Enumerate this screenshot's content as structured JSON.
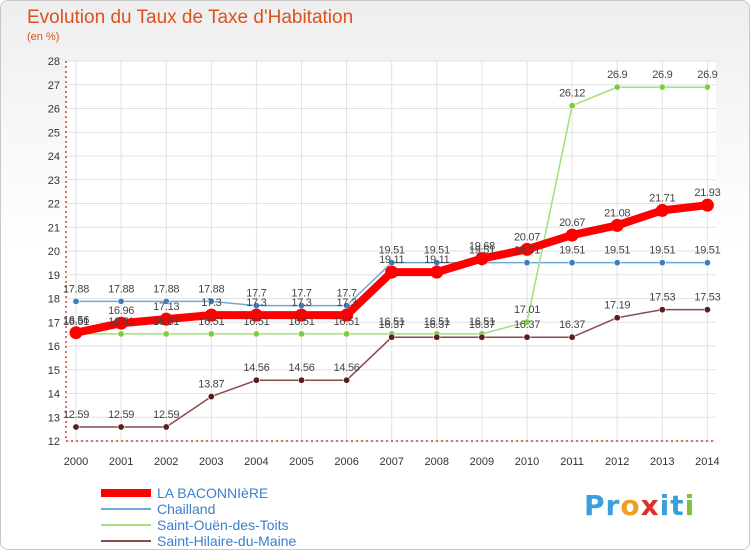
{
  "chart_data": {
    "type": "line",
    "title": "Evolution du Taux de Taxe d'Habitation",
    "unit": "(en %)",
    "x": [
      "2000",
      "2001",
      "2002",
      "2003",
      "2004",
      "2005",
      "2006",
      "2007",
      "2008",
      "2009",
      "2010",
      "2011",
      "2012",
      "2013",
      "2014"
    ],
    "ylim": [
      12,
      28
    ],
    "yticks": [
      12,
      13,
      14,
      15,
      16,
      17,
      18,
      19,
      20,
      21,
      22,
      23,
      24,
      25,
      26,
      27,
      28
    ],
    "grid": true,
    "legend_position": "bottom-left",
    "series": [
      {
        "name": "Chailland",
        "color": "#6fa8d6",
        "marker": "#3a7fc4",
        "values": [
          17.88,
          17.88,
          17.88,
          17.88,
          17.7,
          17.7,
          17.7,
          19.51,
          19.51,
          19.51,
          19.51,
          19.51,
          19.51,
          19.51,
          19.51
        ],
        "labels": [
          "17.88",
          "17.88",
          "17.88",
          "17.88",
          "17.7",
          "17.7",
          "17.7",
          "19.51",
          "19.51",
          "19.51",
          "19.51",
          "19.51",
          "19.51",
          "19.51",
          "19.51"
        ]
      },
      {
        "name": "Saint-Ouën-des-Toits",
        "color": "#9fe07a",
        "marker": "#7ccf3c",
        "values": [
          16.51,
          16.51,
          16.51,
          16.51,
          16.51,
          16.51,
          16.51,
          16.51,
          16.51,
          16.51,
          17.01,
          26.12,
          26.9,
          26.9,
          26.9
        ],
        "labels": [
          "16.51",
          "16.51",
          "16.51",
          "16.51",
          "16.51",
          "16.51",
          "16.51",
          "16.51",
          "16.51",
          "16.51",
          "17.01",
          "26.12",
          "26.9",
          "26.9",
          "26.9"
        ]
      },
      {
        "name": "Saint-Hilaire-du-Maine",
        "color": "#8a4a4a",
        "marker": "#5a1e1e",
        "values": [
          12.59,
          12.59,
          12.59,
          13.87,
          14.56,
          14.56,
          14.56,
          16.37,
          16.37,
          16.37,
          16.37,
          16.37,
          17.19,
          17.53,
          17.53
        ],
        "labels": [
          "12.59",
          "12.59",
          "12.59",
          "13.87",
          "14.56",
          "14.56",
          "14.56",
          "16.37",
          "16.37",
          "16.37",
          "16.37",
          "16.37",
          "17.19",
          "17.53",
          "17.53"
        ]
      },
      {
        "name": "LA BACONNIèRE",
        "color": "#ff0000",
        "marker": "#ff0000",
        "values": [
          16.56,
          16.96,
          17.13,
          17.3,
          17.3,
          17.3,
          17.3,
          19.11,
          19.11,
          19.68,
          20.07,
          20.67,
          21.08,
          21.71,
          21.93
        ],
        "labels": [
          "16.56",
          "16.96",
          "17.13",
          "17.3",
          "17.3",
          "17.3",
          "17.3",
          "19.11",
          "19.11",
          "19.68",
          "20.07",
          "20.67",
          "21.08",
          "21.71",
          "21.93"
        ]
      }
    ],
    "legend": [
      {
        "name": "LA BACONNIèRE",
        "color": "#ff0000",
        "text_color": "#3a7fd0"
      },
      {
        "name": "Chailland",
        "color": "#6fa8d6",
        "text_color": "#3a7fd0"
      },
      {
        "name": "Saint-Ouën-des-Toits",
        "color": "#9fe07a",
        "text_color": "#3a7fd0"
      },
      {
        "name": "Saint-Hilaire-du-Maine",
        "color": "#8a4a4a",
        "text_color": "#3a7fd0"
      }
    ]
  },
  "logo": {
    "text": "Proxiti",
    "letters": [
      "P",
      "r",
      "o",
      "x",
      "i",
      "t",
      "i"
    ],
    "colors": [
      "#3aa0d8",
      "#3aa0d8",
      "#f0a020",
      "#e0302a",
      "#3aa0d8",
      "#3aa0d8",
      "#7cc040"
    ]
  }
}
